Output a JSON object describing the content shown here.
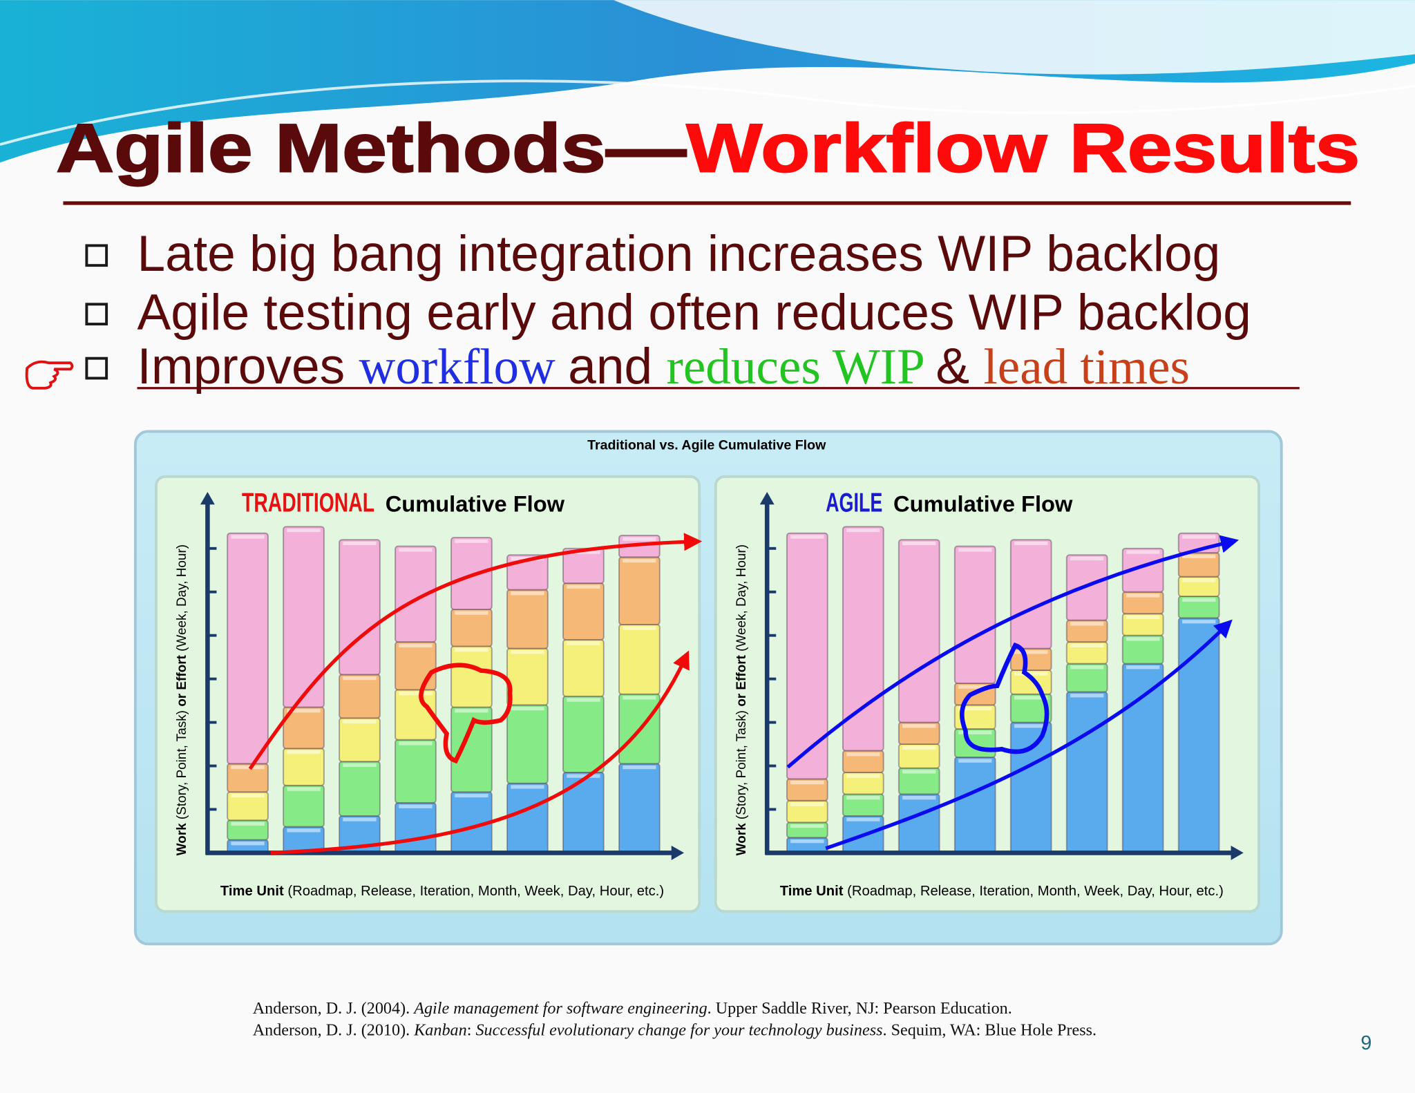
{
  "header": {
    "title": [
      {
        "text": "Agile Methods—",
        "color": "#5a0a0a"
      },
      {
        "text": "Workflow Results",
        "color": "#ff0a0a"
      }
    ]
  },
  "bullets": [
    [
      {
        "text": "Late big bang integration increases WIP backlog",
        "color": "#5a0a0a"
      }
    ],
    [
      {
        "text": "Agile testing early and often reduces WIP backlog",
        "color": "#5a0a0a"
      }
    ],
    [
      {
        "text": "Improves ",
        "color": "#5a0a0a"
      },
      {
        "text": "workflow ",
        "color": "#1f2ee0",
        "serif": true
      },
      {
        "text": "and ",
        "color": "#5a0a0a"
      },
      {
        "text": "reduces WIP ",
        "color": "#22c422",
        "serif": true
      },
      {
        "text": "& ",
        "color": "#5a0a0a"
      },
      {
        "text": "lead times",
        "color": "#c8401a",
        "serif": true
      }
    ]
  ],
  "figure": {
    "title": "Traditional vs. Agile Cumulative Flow"
  },
  "chart_data": [
    {
      "type": "bar",
      "stacked": true,
      "title_prefix": {
        "text": "TRADITIONAL",
        "color": "#e81010"
      },
      "title": "Cumulative Flow",
      "ylabel": [
        {
          "text": "Work",
          "bold": true
        },
        {
          "text": " (Story, Point, Task) "
        },
        {
          "text": "or Effort",
          "bold": true
        },
        {
          "text": " (Week, Day, Hour)"
        }
      ],
      "xlabel": [
        {
          "text": "Time Unit",
          "bold": true
        },
        {
          "text": " (Roadmap, Release, Iteration, Month, Week, Day, Hour, etc.)"
        }
      ],
      "ylim": [
        0,
        8.3
      ],
      "yticks": [
        1,
        2,
        3,
        4,
        5,
        6,
        7
      ],
      "series": [
        {
          "color": "#5aabee",
          "values": [
            0.3,
            0.6,
            0.85,
            1.15,
            1.4,
            1.6,
            1.85,
            2.05
          ]
        },
        {
          "color": "#86ea86",
          "values": [
            0.45,
            0.95,
            1.25,
            1.45,
            1.95,
            1.8,
            1.75,
            1.6
          ]
        },
        {
          "color": "#f4f07a",
          "values": [
            0.65,
            0.85,
            1.0,
            1.15,
            1.4,
            1.3,
            1.3,
            1.6
          ]
        },
        {
          "color": "#f5b877",
          "values": [
            0.65,
            0.95,
            1.0,
            1.1,
            0.85,
            1.35,
            1.3,
            1.55
          ]
        },
        {
          "color": "#f3b0d8",
          "values": [
            5.3,
            4.15,
            3.1,
            2.2,
            1.65,
            0.8,
            0.8,
            0.5
          ]
        }
      ]
    },
    {
      "type": "bar",
      "stacked": true,
      "title_prefix": {
        "text": "AGILE",
        "color": "#1a1ad0"
      },
      "title": "Cumulative Flow",
      "ylabel": [
        {
          "text": "Work",
          "bold": true
        },
        {
          "text": " (Story, Point, Task) "
        },
        {
          "text": "or Effort",
          "bold": true
        },
        {
          "text": " (Week, Day, Hour)"
        }
      ],
      "xlabel": [
        {
          "text": "Time Unit",
          "bold": true
        },
        {
          "text": " (Roadmap, Release, Iteration, Month, Week, Day, Hour, etc.)"
        }
      ],
      "ylim": [
        0,
        8.3
      ],
      "yticks": [
        1,
        2,
        3,
        4,
        5,
        6,
        7
      ],
      "series": [
        {
          "color": "#5aabee",
          "values": [
            0.35,
            0.85,
            1.35,
            2.2,
            3.0,
            3.7,
            4.35,
            5.4
          ]
        },
        {
          "color": "#86ea86",
          "values": [
            0.35,
            0.5,
            0.6,
            0.65,
            0.65,
            0.65,
            0.65,
            0.5
          ]
        },
        {
          "color": "#f4f07a",
          "values": [
            0.5,
            0.5,
            0.55,
            0.55,
            0.55,
            0.5,
            0.5,
            0.45
          ]
        },
        {
          "color": "#f5b877",
          "values": [
            0.5,
            0.5,
            0.5,
            0.5,
            0.5,
            0.5,
            0.5,
            0.55
          ]
        },
        {
          "color": "#f3b0d8",
          "values": [
            5.65,
            5.15,
            4.2,
            3.15,
            2.5,
            1.5,
            1.0,
            0.45
          ]
        }
      ]
    }
  ],
  "references": [
    [
      {
        "text": "Anderson, D. J. (2004). "
      },
      {
        "text": "Agile management for software engineering",
        "italic": true
      },
      {
        "text": ". Upper Saddle River, NJ: Pearson Education."
      }
    ],
    [
      {
        "text": "Anderson, D. J. (2010). "
      },
      {
        "text": "Kanban",
        "italic": true
      },
      {
        "text": ": "
      },
      {
        "text": "Successful evolutionary change for your technology business",
        "italic": true
      },
      {
        "text": ". Sequim, WA: Blue Hole Press."
      }
    ]
  ],
  "page_number": 9
}
